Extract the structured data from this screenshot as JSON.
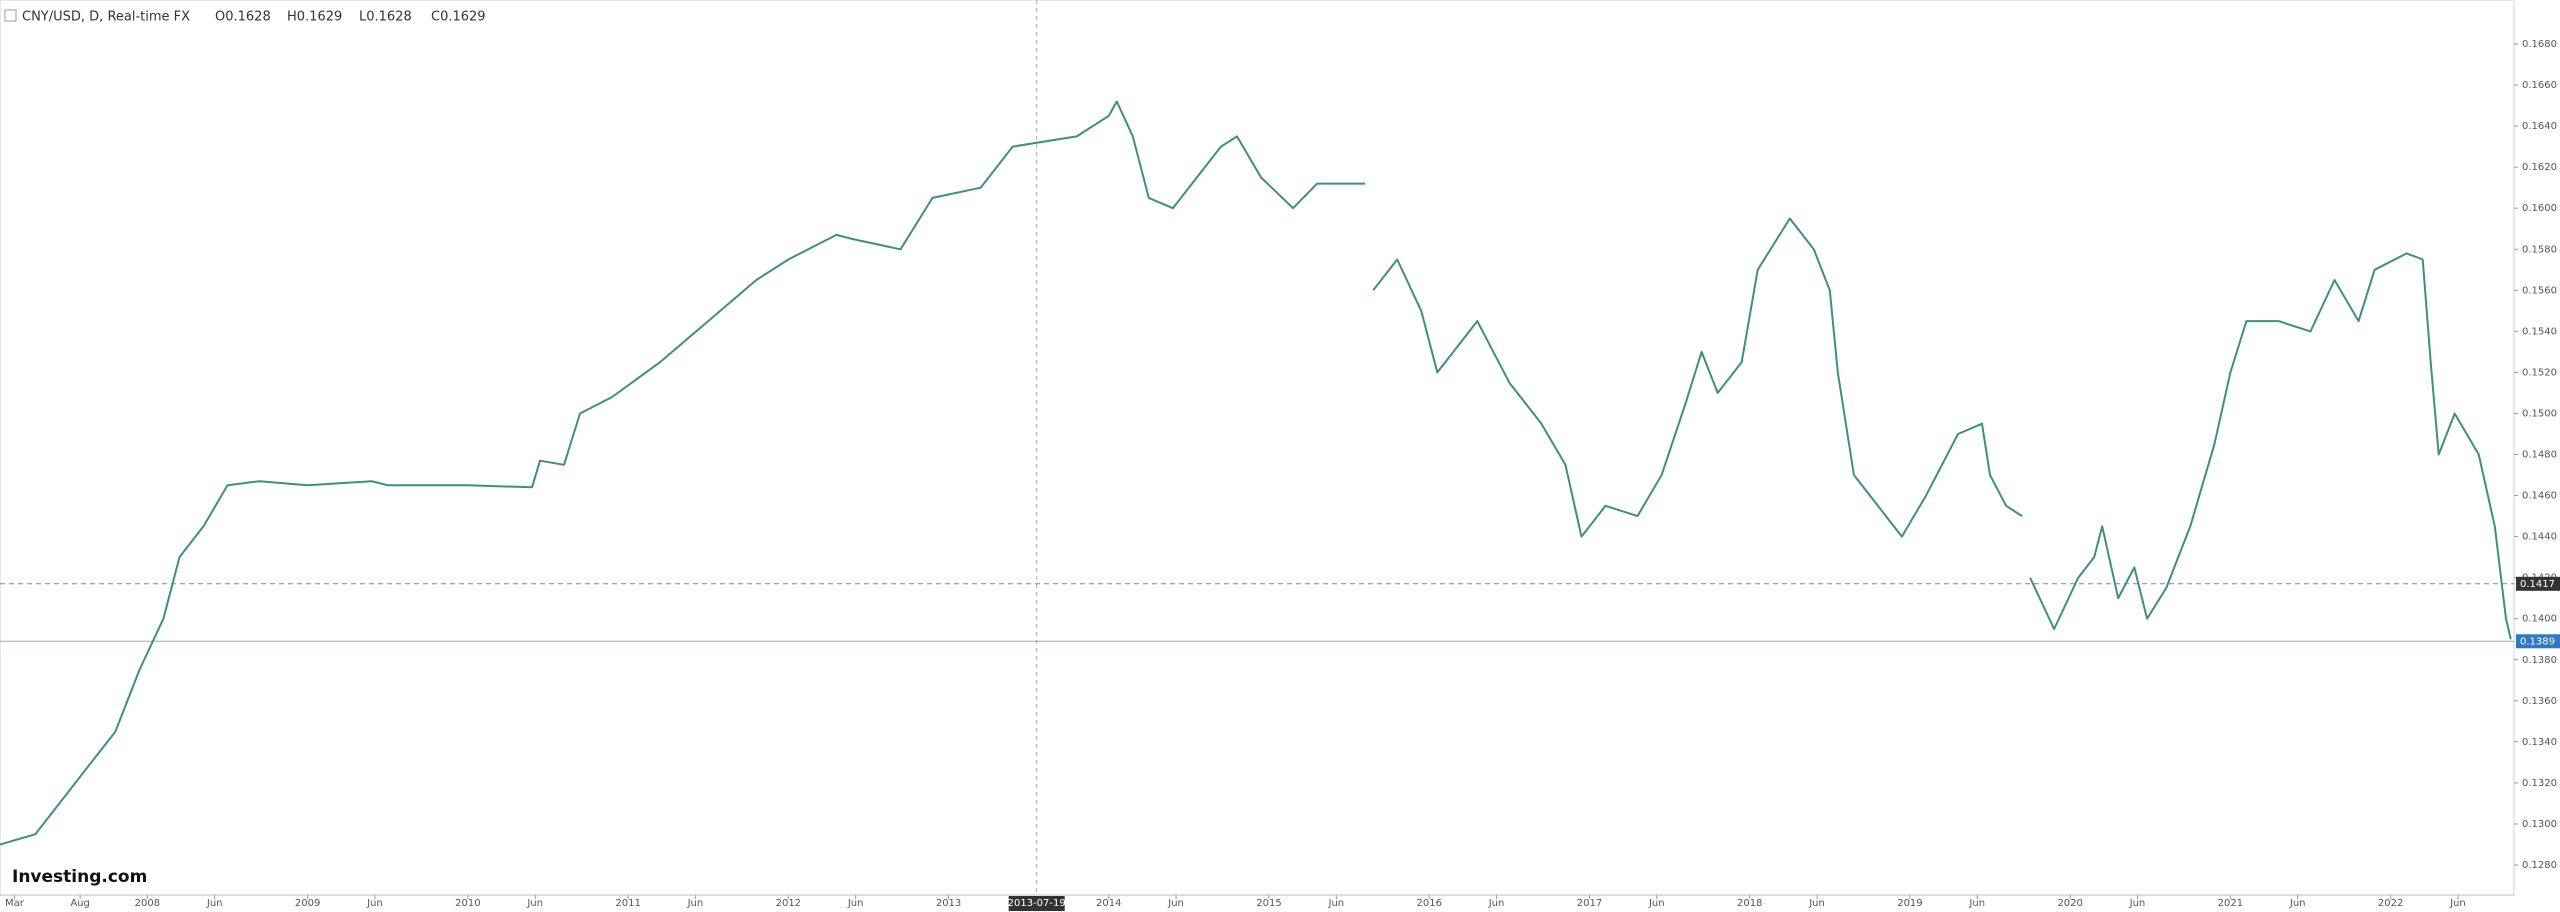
{
  "chart_data": {
    "type": "line",
    "title": "CNY/USD, D, Real-time FX",
    "ohlc": [
      "O0.1628",
      "H0.1629",
      "L0.1628",
      "C0.1629"
    ],
    "logo": "Investing.com",
    "crosshair": {
      "value": 2013.55,
      "label": "2013-07-19"
    },
    "price_markers": [
      {
        "value": 0.1417,
        "label": "0.1417",
        "color": "#333333",
        "style": "dashed"
      },
      {
        "value": 0.1389,
        "label": "0.1389",
        "color": "#2f78c4",
        "style": "solid"
      }
    ],
    "x": [
      2007.08,
      2007.3,
      2007.5,
      2007.6,
      2007.8,
      2007.95,
      2008.1,
      2008.2,
      2008.35,
      2008.5,
      2008.7,
      2009.0,
      2009.4,
      2009.5,
      2010.0,
      2010.4,
      2010.45,
      2010.6,
      2010.7,
      2010.9,
      2011.2,
      2011.5,
      2011.8,
      2012.0,
      2012.3,
      2012.4,
      2012.7,
      2012.9,
      2013.2,
      2013.4,
      2013.8,
      2014.0,
      2014.05,
      2014.15,
      2014.25,
      2014.4,
      2014.55,
      2014.7,
      2014.8,
      2014.95,
      2015.15,
      2015.3,
      2015.6,
      2015.62,
      2015.65,
      2015.8,
      2015.95,
      2016.05,
      2016.2,
      2016.3,
      2016.5,
      2016.7,
      2016.85,
      2016.95,
      2017.1,
      2017.3,
      2017.45,
      2017.6,
      2017.7,
      2017.8,
      2017.95,
      2018.05,
      2018.25,
      2018.4,
      2018.5,
      2018.55,
      2018.65,
      2018.8,
      2018.95,
      2019.1,
      2019.3,
      2019.45,
      2019.5,
      2019.6,
      2019.7,
      2019.72,
      2019.75,
      2019.9,
      2020.05,
      2020.15,
      2020.2,
      2020.3,
      2020.4,
      2020.48,
      2020.6,
      2020.75,
      2020.9,
      2021.0,
      2021.1,
      2021.3,
      2021.5,
      2021.65,
      2021.8,
      2021.9,
      2022.1,
      2022.2,
      2022.25,
      2022.3,
      2022.4,
      2022.55,
      2022.65,
      2022.72,
      2022.75
    ],
    "series": [
      {
        "name": "CNY/USD",
        "color": "#3f8f7f",
        "values": [
          0.129,
          0.1295,
          0.1315,
          0.1325,
          0.1345,
          0.1375,
          0.14,
          0.143,
          0.1445,
          0.1465,
          0.1467,
          0.1465,
          0.1467,
          0.1465,
          0.1465,
          0.1464,
          0.1477,
          0.1475,
          0.15,
          0.1508,
          0.1525,
          0.1545,
          0.1565,
          0.1575,
          0.1587,
          0.1585,
          0.158,
          0.1605,
          0.161,
          0.163,
          0.1635,
          0.1645,
          0.1652,
          0.1635,
          0.1605,
          0.16,
          0.1615,
          0.163,
          0.1635,
          0.1615,
          0.16,
          0.1612,
          0.1612,
          null,
          0.156,
          0.1575,
          0.155,
          0.152,
          0.1535,
          0.1545,
          0.1515,
          0.1495,
          0.1475,
          0.144,
          0.1455,
          0.145,
          0.147,
          0.1505,
          0.153,
          0.151,
          0.1525,
          0.157,
          0.1595,
          0.158,
          0.156,
          0.152,
          0.147,
          0.1455,
          0.144,
          0.146,
          0.149,
          0.1495,
          0.147,
          0.1455,
          0.145,
          null,
          0.142,
          0.1395,
          0.142,
          0.143,
          0.1445,
          0.141,
          0.1425,
          0.14,
          0.1415,
          0.1445,
          0.1485,
          0.152,
          0.1545,
          0.1545,
          0.154,
          0.1565,
          0.1545,
          0.157,
          0.1578,
          0.1575,
          0.1525,
          0.148,
          0.15,
          0.148,
          0.1445,
          0.14,
          0.139
        ]
      }
    ],
    "xlim": [
      2007.08,
      2022.77
    ],
    "ylim": [
      0.128,
      0.168
    ],
    "xticks": [
      {
        "value": 2007.17,
        "label": "Mar"
      },
      {
        "value": 2007.58,
        "label": "Aug"
      },
      {
        "value": 2008,
        "label": "2008"
      },
      {
        "value": 2008.42,
        "label": "Jun"
      },
      {
        "value": 2009,
        "label": "2009"
      },
      {
        "value": 2009.42,
        "label": "Jun"
      },
      {
        "value": 2010,
        "label": "2010"
      },
      {
        "value": 2010.42,
        "label": "Jun"
      },
      {
        "value": 2011,
        "label": "2011"
      },
      {
        "value": 2011.42,
        "label": "Jun"
      },
      {
        "value": 2012,
        "label": "2012"
      },
      {
        "value": 2012.42,
        "label": "Jun"
      },
      {
        "value": 2013,
        "label": "2013"
      },
      {
        "value": 2014,
        "label": "2014"
      },
      {
        "value": 2014.42,
        "label": "Jun"
      },
      {
        "value": 2015,
        "label": "2015"
      },
      {
        "value": 2015.42,
        "label": "Jun"
      },
      {
        "value": 2016,
        "label": "2016"
      },
      {
        "value": 2016.42,
        "label": "Jun"
      },
      {
        "value": 2017,
        "label": "2017"
      },
      {
        "value": 2017.42,
        "label": "Jun"
      },
      {
        "value": 2018,
        "label": "2018"
      },
      {
        "value": 2018.42,
        "label": "Jun"
      },
      {
        "value": 2019,
        "label": "2019"
      },
      {
        "value": 2019.42,
        "label": "Jun"
      },
      {
        "value": 2020,
        "label": "2020"
      },
      {
        "value": 2020.42,
        "label": "Jun"
      },
      {
        "value": 2021,
        "label": "2021"
      },
      {
        "value": 2021.42,
        "label": "Jun"
      },
      {
        "value": 2022,
        "label": "2022"
      },
      {
        "value": 2022.42,
        "label": "Jun"
      }
    ],
    "yticks": [
      {
        "value": 0.128,
        "label": "0.1280"
      },
      {
        "value": 0.13,
        "label": "0.1300"
      },
      {
        "value": 0.132,
        "label": "0.1320"
      },
      {
        "value": 0.134,
        "label": "0.1340"
      },
      {
        "value": 0.136,
        "label": "0.1360"
      },
      {
        "value": 0.138,
        "label": "0.1380"
      },
      {
        "value": 0.14,
        "label": "0.1400"
      },
      {
        "value": 0.142,
        "label": "0.1420"
      },
      {
        "value": 0.144,
        "label": "0.1440"
      },
      {
        "value": 0.146,
        "label": "0.1460"
      },
      {
        "value": 0.148,
        "label": "0.1480"
      },
      {
        "value": 0.15,
        "label": "0.1500"
      },
      {
        "value": 0.152,
        "label": "0.1520"
      },
      {
        "value": 0.154,
        "label": "0.1540"
      },
      {
        "value": 0.156,
        "label": "0.1560"
      },
      {
        "value": 0.158,
        "label": "0.1580"
      },
      {
        "value": 0.16,
        "label": "0.1600"
      },
      {
        "value": 0.162,
        "label": "0.1620"
      },
      {
        "value": 0.164,
        "label": "0.1640"
      },
      {
        "value": 0.166,
        "label": "0.1660"
      },
      {
        "value": 0.168,
        "label": "0.1680"
      }
    ],
    "grid": false
  }
}
